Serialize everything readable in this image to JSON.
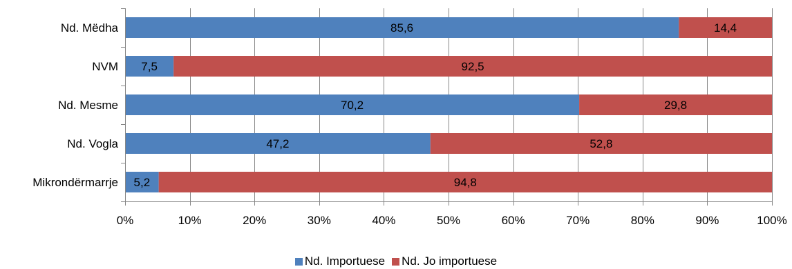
{
  "chart_data": {
    "type": "bar",
    "orientation": "horizontal",
    "stacked": "percent",
    "categories": [
      "Nd. Mëdha",
      "NVM",
      "Nd. Mesme",
      "Nd. Vogla",
      "Mikrondërmarrje"
    ],
    "series": [
      {
        "name": "Nd. Importuese",
        "color": "#4f81bd",
        "values": [
          85.6,
          7.5,
          70.2,
          47.2,
          5.2
        ],
        "labels": [
          "85,6",
          "7,5",
          "70,2",
          "47,2",
          "5,2"
        ]
      },
      {
        "name": "Nd. Jo importuese",
        "color": "#c0504d",
        "values": [
          14.4,
          92.5,
          29.8,
          52.8,
          94.8
        ],
        "labels": [
          "14,4",
          "92,5",
          "29,8",
          "52,8",
          "94,8"
        ]
      }
    ],
    "x_ticks": [
      "0%",
      "10%",
      "20%",
      "30%",
      "40%",
      "50%",
      "60%",
      "70%",
      "80%",
      "90%",
      "100%"
    ],
    "xlim": [
      0,
      100
    ],
    "grid": "vertical",
    "legend_position": "bottom",
    "title": "",
    "xlabel": "",
    "ylabel": ""
  }
}
